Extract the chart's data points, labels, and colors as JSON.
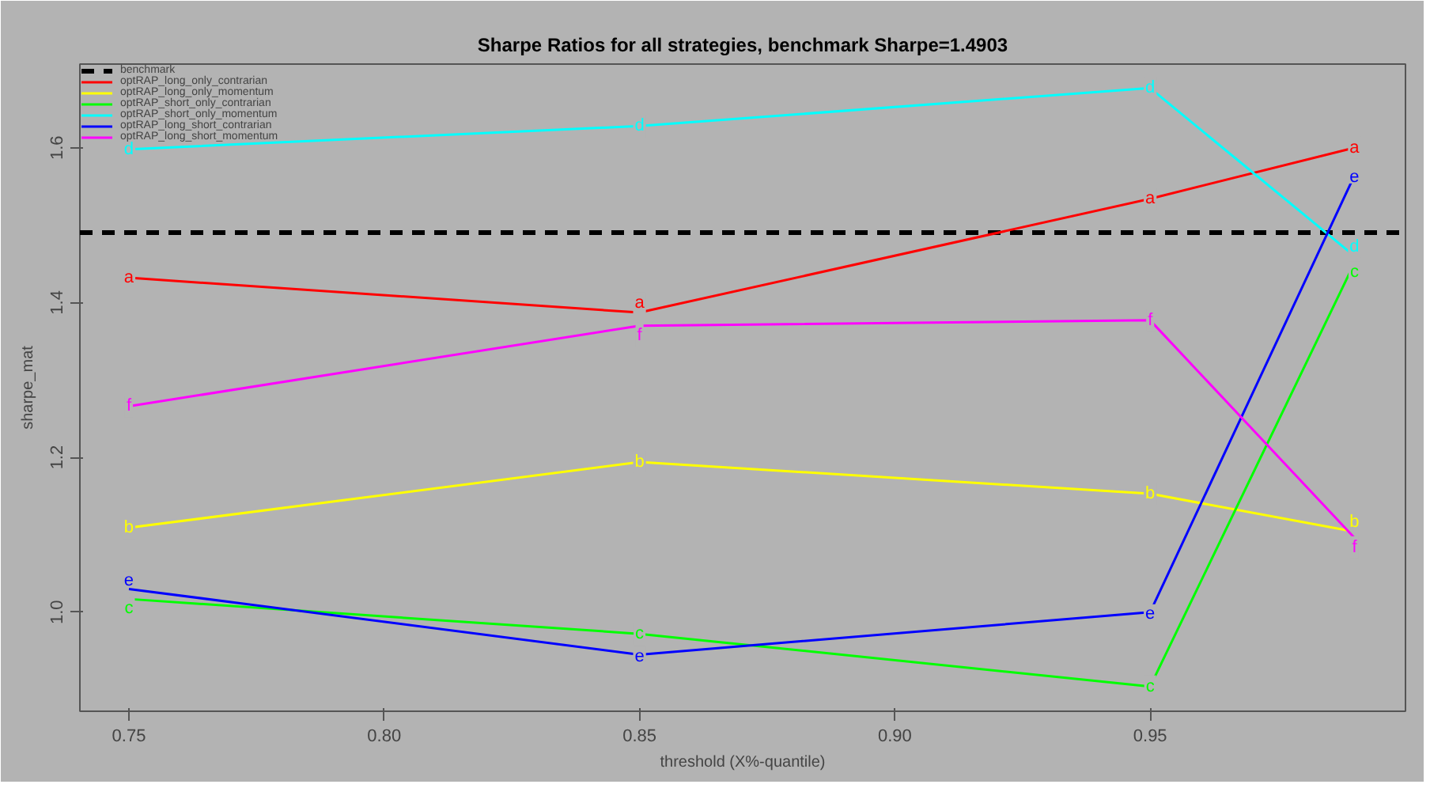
{
  "chart_data": {
    "type": "line",
    "title": "Sharpe Ratios for all strategies, benchmark Sharpe=1.4903",
    "xlabel": "threshold (X%-quantile)",
    "ylabel": "sharpe_mat",
    "x": [
      0.75,
      0.85,
      0.95,
      0.99
    ],
    "xlim": [
      0.7404,
      1.0
    ],
    "xticks": [
      {
        "value": 0.75,
        "label": "0.75"
      },
      {
        "value": 0.8,
        "label": "0.80"
      },
      {
        "value": 0.85,
        "label": "0.85"
      },
      {
        "value": 0.9,
        "label": "0.90"
      },
      {
        "value": 0.95,
        "label": "0.95"
      }
    ],
    "ylim": [
      0.872,
      1.708
    ],
    "yticks": [
      {
        "value": 1.0,
        "label": "1.0"
      },
      {
        "value": 1.2,
        "label": "1.2"
      },
      {
        "value": 1.4,
        "label": "1.4"
      },
      {
        "value": 1.6,
        "label": "1.6"
      }
    ],
    "grid": false,
    "legend": "top left",
    "line_style": "solid",
    "ref_lines": [
      {
        "axis": "y",
        "value": 1.4903,
        "label": "benchmark",
        "color": "#000000",
        "line_style": "dashed"
      }
    ],
    "series": [
      {
        "name": "optRAP_long_only_contrarian",
        "color": "#ff0000",
        "values": [
          1.432,
          1.387,
          1.534,
          1.6
        ],
        "value_labels": [
          "a",
          "a",
          "a",
          "a"
        ]
      },
      {
        "name": "optRAP_long_only_momentum",
        "color": "#ffff00",
        "values": [
          1.109,
          1.194,
          1.153,
          1.104
        ],
        "value_labels": [
          "b",
          "b",
          "b",
          "b"
        ]
      },
      {
        "name": "optRAP_short_only_contrarian",
        "color": "#00ff00",
        "values": [
          1.017,
          0.972,
          0.904,
          1.451
        ],
        "value_labels": [
          "c",
          "c",
          "c",
          "c"
        ]
      },
      {
        "name": "optRAP_short_only_momentum",
        "color": "#00ffff",
        "values": [
          1.598,
          1.628,
          1.677,
          1.46
        ],
        "value_labels": [
          "d",
          "d",
          "d",
          "d"
        ]
      },
      {
        "name": "optRAP_long_short_contrarian",
        "color": "#0000ff",
        "values": [
          1.03,
          0.945,
          1.0,
          1.564
        ],
        "value_labels": [
          "e",
          "e",
          "e",
          "e"
        ]
      },
      {
        "name": "optRAP_long_short_momentum",
        "color": "#ff00ff",
        "values": [
          1.266,
          1.37,
          1.377,
          1.096
        ],
        "value_labels": [
          "f",
          "f",
          "f",
          "f"
        ]
      }
    ]
  }
}
